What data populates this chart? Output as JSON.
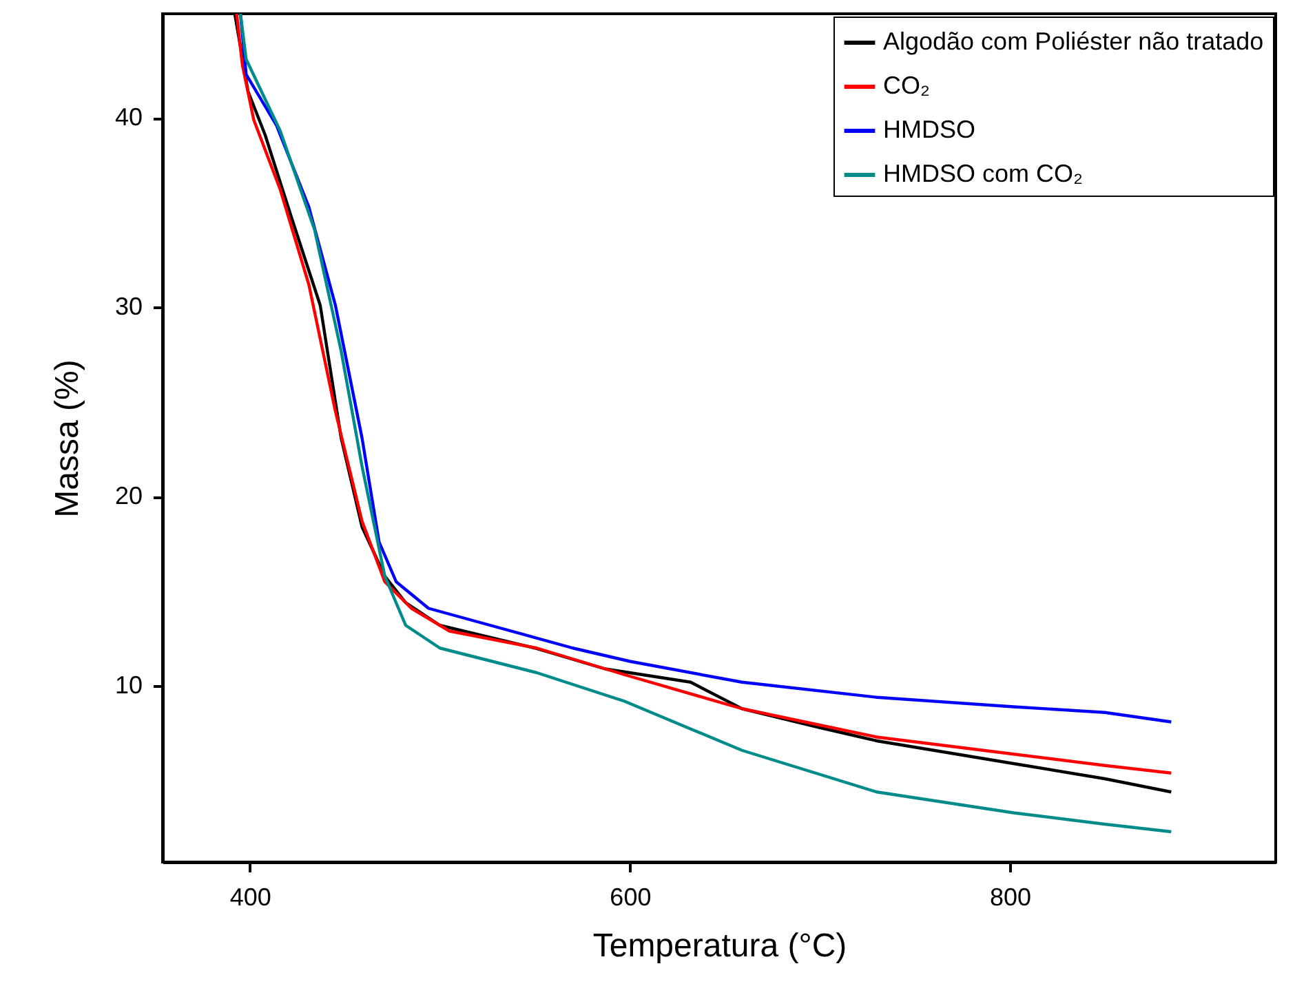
{
  "chart_data": {
    "type": "line",
    "xlabel": "Temperatura (°C)",
    "ylabel": "Massa (%)",
    "xlim": [
      354,
      940
    ],
    "ylim": [
      0.7,
      45.5
    ],
    "xticks": [
      400,
      600,
      800
    ],
    "yticks": [
      10,
      20,
      30,
      40
    ],
    "grid": false,
    "legend": "top right",
    "marker": "none",
    "line_style": "solid",
    "series": [
      {
        "name": "Algodão com Poliéster não tratado",
        "color": "#000000",
        "x": [
          392,
          399,
          408,
          422,
          437,
          448,
          459,
          471,
          482,
          500,
          550,
          587,
          632,
          659,
          700,
          730,
          802,
          850,
          885
        ],
        "values": [
          45.5,
          41.4,
          39.1,
          34.7,
          30.1,
          23.1,
          18.4,
          15.8,
          14.4,
          13.2,
          12.0,
          10.9,
          10.2,
          8.8,
          7.8,
          7.1,
          5.9,
          5.1,
          4.4
        ]
      },
      {
        "name": "CO₂",
        "color": "#ff0000",
        "x": [
          393,
          396,
          402,
          416,
          431,
          445,
          459,
          471,
          485,
          505,
          551,
          597,
          659,
          730,
          802,
          850,
          885
        ],
        "values": [
          45.5,
          42.8,
          39.9,
          36.2,
          31.2,
          24.5,
          18.7,
          15.5,
          14.1,
          12.9,
          12.0,
          10.6,
          8.8,
          7.3,
          6.4,
          5.8,
          5.4
        ]
      },
      {
        "name": "HMDSO",
        "color": "#0000ff",
        "x": [
          395,
          398,
          414,
          431,
          445,
          459,
          468,
          477,
          494,
          523,
          570,
          600,
          659,
          730,
          802,
          850,
          885
        ],
        "values": [
          45.5,
          42.3,
          39.6,
          35.3,
          30.1,
          23.1,
          17.6,
          15.5,
          14.1,
          13.3,
          12.0,
          11.3,
          10.2,
          9.4,
          8.9,
          8.6,
          8.1
        ]
      },
      {
        "name": "HMDSO com CO₂",
        "color": "#008b8b",
        "x": [
          395,
          398,
          416,
          434,
          448,
          459,
          471,
          482,
          500,
          551,
          597,
          659,
          730,
          802,
          850,
          885
        ],
        "values": [
          45.5,
          43.1,
          39.3,
          34.1,
          27.7,
          21.6,
          15.8,
          13.2,
          12.0,
          10.7,
          9.2,
          6.6,
          4.4,
          3.3,
          2.7,
          2.3
        ]
      }
    ]
  }
}
